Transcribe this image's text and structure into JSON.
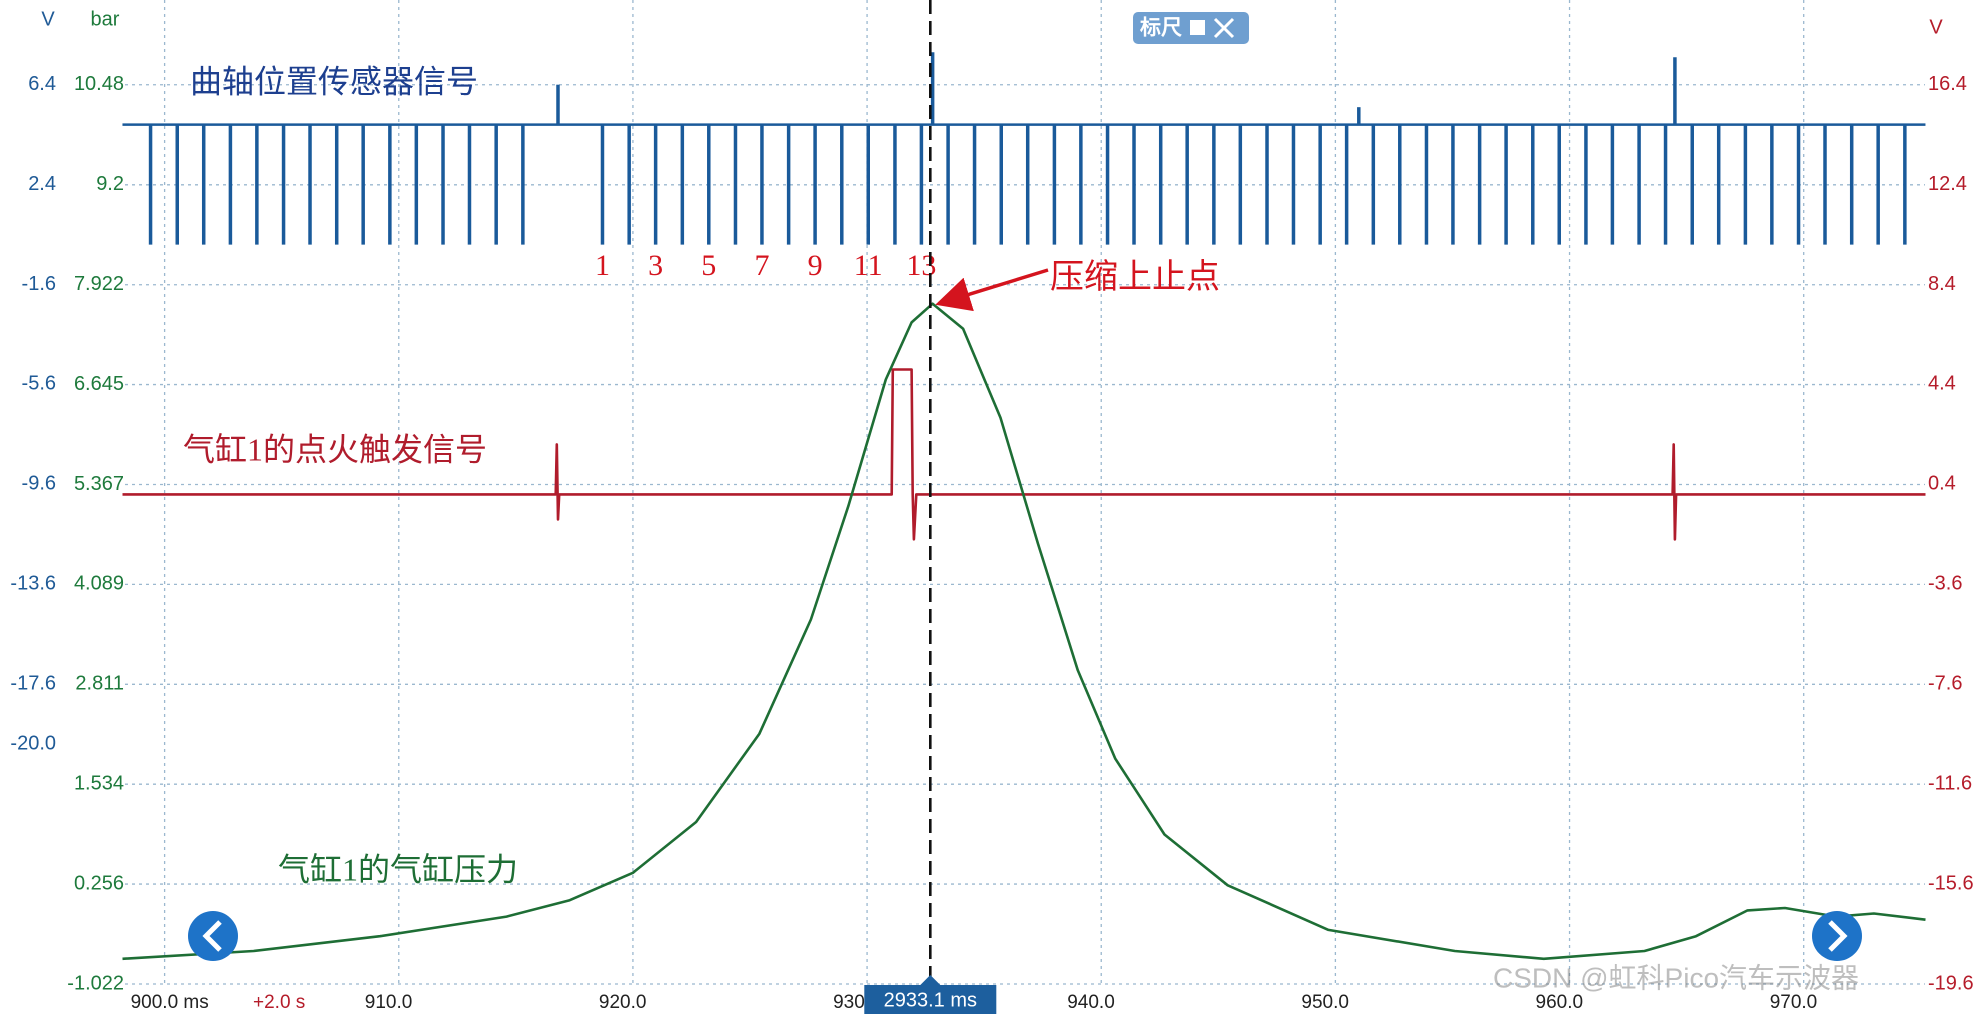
{
  "chart_data": {
    "type": "line",
    "y_unit": "V",
    "y3_unit": "bar",
    "y2_unit": "V",
    "xlim": [
      892.97,
      977.7
    ],
    "xticks": [
      {
        "value": 900,
        "label": "900.0 ms"
      },
      {
        "value": 910,
        "label": "910.0"
      },
      {
        "value": 920,
        "label": "920.0"
      },
      {
        "value": 930,
        "label": "930.0"
      },
      {
        "value": 940,
        "label": "940.0"
      },
      {
        "value": 950,
        "label": "950.0"
      },
      {
        "value": 960,
        "label": "960.0"
      },
      {
        "value": 970,
        "label": "970.0"
      }
    ],
    "ylim": [
      -29.6,
      9.79
    ],
    "yticks": [
      6.4,
      2.4,
      -1.6,
      -5.6,
      -9.6,
      -13.6,
      -17.6,
      {
        "value": -20,
        "label": "-20.0"
      }
    ],
    "y3lim": [
      -1.022,
      11.564
    ],
    "y3ticks": [
      10.48,
      9.2,
      7.922,
      6.645,
      5.367,
      4.089,
      2.811,
      1.534,
      0.256,
      -1.022
    ],
    "y2lim": [
      -19.6,
      19.79
    ],
    "y2ticks": [
      16.4,
      12.4,
      8.4,
      4.4,
      0.4,
      -3.6,
      -7.6,
      -11.6,
      -15.6,
      -19.6
    ],
    "grid": true,
    "time_offset": "+2.0 s",
    "cursor": {
      "x": 932.7,
      "label": "2933.1 ms"
    },
    "ruler_button": "标尺",
    "tooth_labels": [
      "1",
      "3",
      "5",
      "7",
      "9",
      "11",
      "13"
    ],
    "annotation": "压缩上止点",
    "watermark": "CSDN @虹科Pico汽车示波器",
    "series": [
      {
        "name": "曲轴位置传感器信号",
        "kind": "stem",
        "axis": "y",
        "color": "#1a5a9a",
        "baseline": 4.8,
        "x": [
          899.4,
          900.54,
          901.67,
          902.81,
          903.94,
          905.08,
          906.21,
          907.35,
          908.48,
          909.62,
          910.75,
          911.89,
          913.02,
          914.16,
          915.3,
          918.7,
          919.84,
          920.97,
          922.11,
          923.24,
          924.38,
          925.51,
          926.65,
          927.78,
          928.92,
          930.05,
          931.19,
          932.32,
          933.46,
          934.59,
          935.73,
          936.86,
          938.0,
          939.13,
          940.27,
          941.4,
          942.54,
          943.67,
          944.81,
          945.94,
          947.08,
          948.21,
          949.35,
          950.48,
          951.62,
          952.75,
          953.89,
          955.02,
          956.16,
          957.29,
          958.43,
          959.56,
          960.7,
          961.83,
          962.97,
          964.1,
          965.24,
          966.37,
          967.51,
          968.64,
          969.78,
          970.91,
          972.05,
          973.18,
          974.32,
          916.8,
          932.8,
          951.0,
          964.5
        ],
        "values": [
          0,
          0,
          0,
          0,
          0,
          0,
          0,
          0,
          0,
          0,
          0,
          0,
          0,
          0,
          0,
          0,
          0,
          0,
          0,
          0,
          0,
          0,
          0,
          0,
          0,
          0,
          0,
          0,
          0,
          0,
          0,
          0,
          0,
          0,
          0,
          0,
          0,
          0,
          0,
          0,
          0,
          0,
          0,
          0,
          0,
          0,
          0,
          0,
          0,
          0,
          0,
          0,
          0,
          0,
          0,
          0,
          0,
          0,
          0,
          0,
          0,
          0,
          0,
          0,
          0,
          6.4,
          7.7,
          5.5,
          7.5
        ]
      },
      {
        "name": "气缸1的点火触发信号",
        "kind": "line",
        "axis": "y2",
        "color": "#b01c2c",
        "x": [
          898.2,
          916.7,
          916.75,
          916.8,
          916.85,
          931.05,
          931.1,
          931.9,
          931.95,
          932.0,
          932.1,
          964.4,
          964.45,
          964.5,
          964.55,
          975.2
        ],
        "values": [
          0,
          0,
          2.0,
          -1.0,
          0,
          0,
          5.0,
          5.0,
          0,
          -1.8,
          0,
          0,
          2.0,
          -1.8,
          0,
          0
        ]
      },
      {
        "name": "气缸1的气缸压力",
        "kind": "line",
        "axis": "y3",
        "color": "#1e6e35",
        "x": [
          898.2,
          903.8,
          909.2,
          914.6,
          917.3,
          920.0,
          922.7,
          925.4,
          927.6,
          929.2,
          930.8,
          931.9,
          932.8,
          934.1,
          935.7,
          937.3,
          939.0,
          940.6,
          942.7,
          945.4,
          949.7,
          955.1,
          958.9,
          963.2,
          965.4,
          967.6,
          969.2,
          971.4,
          973.0,
          975.2
        ],
        "values": [
          -0.7,
          -0.6,
          -0.41,
          -0.16,
          0.05,
          0.4,
          1.05,
          2.18,
          3.64,
          5.09,
          6.71,
          7.44,
          7.68,
          7.36,
          6.22,
          4.61,
          2.99,
          1.86,
          0.89,
          0.24,
          -0.33,
          -0.6,
          -0.7,
          -0.6,
          -0.41,
          -0.08,
          -0.05,
          -0.16,
          -0.12,
          -0.2
        ]
      }
    ]
  }
}
